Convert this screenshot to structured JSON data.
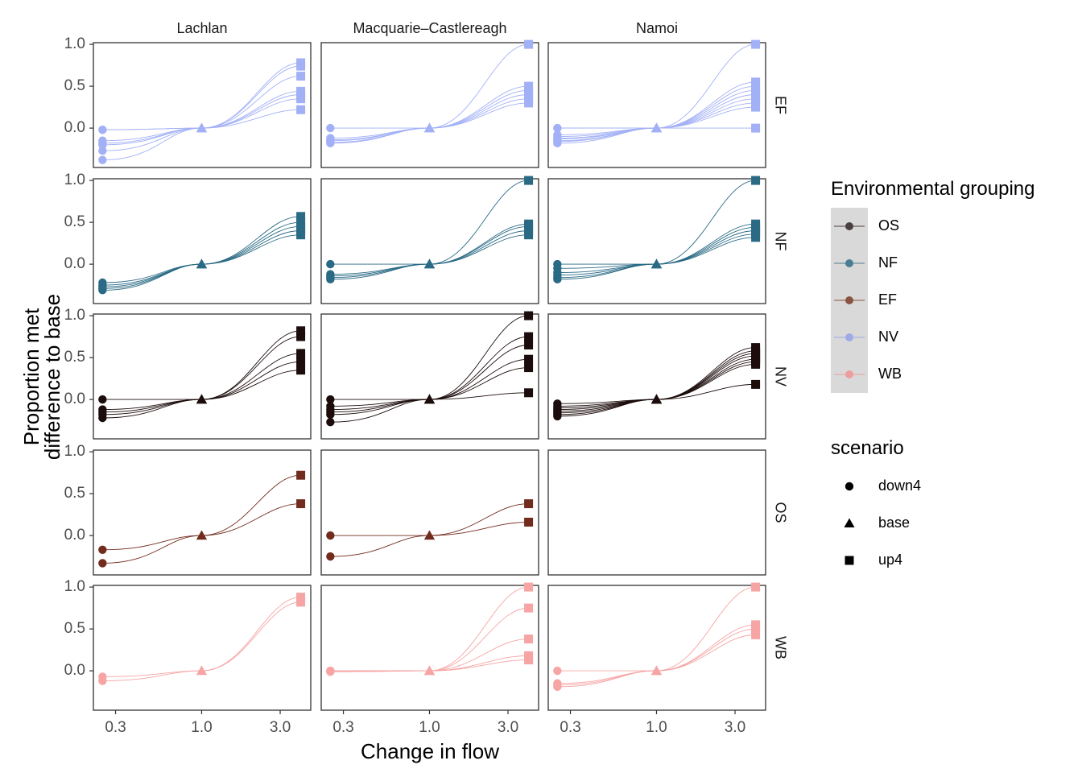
{
  "chart_data": {
    "type": "line",
    "xlabel": "Change in flow",
    "ylabel_lines": [
      "Proportion met",
      "difference to base"
    ],
    "x_scale": "log",
    "x_ticks": [
      0.3,
      1.0,
      3.0
    ],
    "x_tick_labels": [
      "0.3",
      "1.0",
      "3.0"
    ],
    "y_ticks": [
      0,
      0.5,
      1.0
    ],
    "y_tick_labels": [
      "0.0",
      "0.5",
      "1.0"
    ],
    "ylim": [
      -0.47,
      1.02
    ],
    "x_values": [
      0.25,
      1.0,
      4.0
    ],
    "columns": [
      "Lachlan",
      "Macquarie–Castlereagh",
      "Namoi"
    ],
    "rows": [
      "EF",
      "NF",
      "NV",
      "OS",
      "WB"
    ],
    "row_colors": {
      "EF": "#a2b0f6",
      "NF": "#2a6a84",
      "NV": "#1c0c0c",
      "OS": "#722c1e",
      "WB": "#f6a4a4"
    },
    "panels": [
      {
        "row": "EF",
        "col": "Lachlan",
        "series": [
          [
            -0.02,
            0,
            0.78
          ],
          [
            -0.15,
            0,
            0.74
          ],
          [
            -0.18,
            0,
            0.62
          ],
          [
            -0.27,
            0,
            0.44
          ],
          [
            -0.02,
            0,
            0.4
          ],
          [
            -0.38,
            0,
            0.35
          ],
          [
            -0.2,
            0,
            0.22
          ]
        ]
      },
      {
        "row": "EF",
        "col": "Macquarie–Castlereagh",
        "series": [
          [
            0.0,
            0,
            1.0
          ],
          [
            -0.12,
            0,
            0.5
          ],
          [
            -0.15,
            0,
            0.45
          ],
          [
            -0.17,
            0,
            0.4
          ],
          [
            -0.14,
            0,
            0.35
          ],
          [
            -0.18,
            0,
            0.3
          ]
        ]
      },
      {
        "row": "EF",
        "col": "Namoi",
        "series": [
          [
            0.0,
            0,
            1.0
          ],
          [
            -0.08,
            0,
            0.55
          ],
          [
            -0.12,
            0,
            0.5
          ],
          [
            -0.15,
            0,
            0.45
          ],
          [
            -0.1,
            0,
            0.4
          ],
          [
            -0.18,
            0,
            0.35
          ],
          [
            -0.16,
            0,
            0.3
          ],
          [
            -0.13,
            0,
            0.25
          ],
          [
            0.0,
            0,
            0.0
          ]
        ]
      },
      {
        "row": "NF",
        "col": "Lachlan",
        "series": [
          [
            -0.22,
            0,
            0.57
          ],
          [
            -0.25,
            0,
            0.5
          ],
          [
            -0.27,
            0,
            0.45
          ],
          [
            -0.29,
            0,
            0.4
          ],
          [
            -0.31,
            0,
            0.35
          ]
        ]
      },
      {
        "row": "NF",
        "col": "Macquarie–Castlereagh",
        "series": [
          [
            0.0,
            0,
            1.0
          ],
          [
            -0.12,
            0,
            0.48
          ],
          [
            -0.14,
            0,
            0.45
          ],
          [
            -0.16,
            0,
            0.4
          ],
          [
            -0.18,
            0,
            0.35
          ]
        ]
      },
      {
        "row": "NF",
        "col": "Namoi",
        "series": [
          [
            0.0,
            0,
            1.0
          ],
          [
            -0.05,
            0,
            0.48
          ],
          [
            -0.1,
            0,
            0.44
          ],
          [
            -0.13,
            0,
            0.4
          ],
          [
            -0.16,
            0,
            0.36
          ],
          [
            -0.18,
            0,
            0.32
          ]
        ]
      },
      {
        "row": "NV",
        "col": "Lachlan",
        "series": [
          [
            0.0,
            0,
            0.82
          ],
          [
            -0.12,
            0,
            0.75
          ],
          [
            -0.18,
            0,
            0.55
          ],
          [
            -0.22,
            0,
            0.45
          ],
          [
            -0.15,
            0,
            0.35
          ]
        ]
      },
      {
        "row": "NV",
        "col": "Macquarie–Castlereagh",
        "series": [
          [
            0.0,
            0,
            1.0
          ],
          [
            -0.12,
            0,
            0.75
          ],
          [
            -0.18,
            0,
            0.65
          ],
          [
            -0.27,
            0,
            0.48
          ],
          [
            -0.08,
            0,
            0.38
          ],
          [
            -0.15,
            0,
            0.08
          ]
        ]
      },
      {
        "row": "NV",
        "col": "Namoi",
        "series": [
          [
            -0.05,
            0,
            0.62
          ],
          [
            -0.08,
            0,
            0.58
          ],
          [
            -0.1,
            0,
            0.55
          ],
          [
            -0.12,
            0,
            0.52
          ],
          [
            -0.14,
            0,
            0.48
          ],
          [
            -0.16,
            0,
            0.45
          ],
          [
            -0.18,
            0,
            0.42
          ],
          [
            -0.2,
            0,
            0.18
          ]
        ]
      },
      {
        "row": "OS",
        "col": "Lachlan",
        "series": [
          [
            -0.17,
            0,
            0.72
          ],
          [
            -0.33,
            0,
            0.38
          ]
        ]
      },
      {
        "row": "OS",
        "col": "Macquarie–Castlereagh",
        "series": [
          [
            0.0,
            0,
            0.38
          ],
          [
            -0.25,
            0,
            0.16
          ]
        ]
      },
      {
        "row": "WB",
        "col": "Lachlan",
        "series": [
          [
            -0.07,
            0,
            0.88
          ],
          [
            -0.12,
            0,
            0.82
          ]
        ]
      },
      {
        "row": "WB",
        "col": "Macquarie–Castlereagh",
        "series": [
          [
            0.0,
            0,
            1.0
          ],
          [
            0.0,
            0,
            0.75
          ],
          [
            -0.01,
            0,
            0.38
          ],
          [
            -0.01,
            0,
            0.18
          ],
          [
            0.0,
            0,
            0.13
          ]
        ]
      },
      {
        "row": "WB",
        "col": "Namoi",
        "series": [
          [
            0.0,
            0,
            1.0
          ],
          [
            -0.15,
            0,
            0.55
          ],
          [
            -0.17,
            0,
            0.5
          ],
          [
            -0.19,
            0,
            0.43
          ]
        ]
      }
    ],
    "legend_color": {
      "title": "Environmental grouping",
      "items": [
        {
          "label": "OS",
          "color": "#4a4040"
        },
        {
          "label": "NF",
          "color": "#4a7d94"
        },
        {
          "label": "EF",
          "color": "#8a5444"
        },
        {
          "label": "NV",
          "color": "#9eaae6"
        },
        {
          "label": "WB",
          "color": "#ec9e9e"
        }
      ]
    },
    "legend_shape": {
      "title": "scenario",
      "items": [
        {
          "label": "down4",
          "shape": "circle"
        },
        {
          "label": "base",
          "shape": "triangle"
        },
        {
          "label": "up4",
          "shape": "square"
        }
      ]
    }
  }
}
